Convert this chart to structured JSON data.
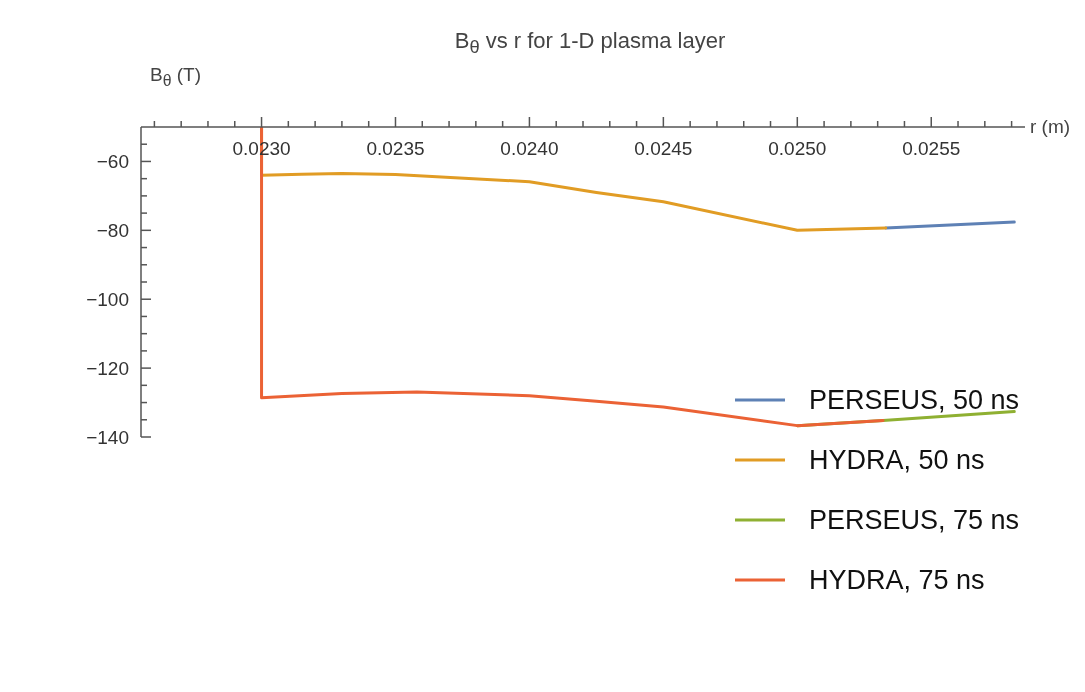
{
  "chart_data": {
    "type": "line",
    "title": "B$_{θ}$ vs r for 1-D plasma layer",
    "xlabel": "r (m)",
    "ylabel": "B$_{θ}$ (T)",
    "xlim": [
      0.02255,
      0.02585
    ],
    "ylim": [
      -140,
      -50
    ],
    "xticks": [
      {
        "value": 0.0226,
        "label": null
      },
      {
        "value": 0.0227,
        "label": null
      },
      {
        "value": 0.0228,
        "label": null
      },
      {
        "value": 0.0229,
        "label": null
      },
      {
        "value": 0.023,
        "label": "0.0230"
      },
      {
        "value": 0.0231,
        "label": null
      },
      {
        "value": 0.0232,
        "label": null
      },
      {
        "value": 0.0233,
        "label": null
      },
      {
        "value": 0.0234,
        "label": null
      },
      {
        "value": 0.0235,
        "label": "0.0235"
      },
      {
        "value": 0.0236,
        "label": null
      },
      {
        "value": 0.0237,
        "label": null
      },
      {
        "value": 0.0238,
        "label": null
      },
      {
        "value": 0.0239,
        "label": null
      },
      {
        "value": 0.024,
        "label": "0.0240"
      },
      {
        "value": 0.0241,
        "label": null
      },
      {
        "value": 0.0242,
        "label": null
      },
      {
        "value": 0.0243,
        "label": null
      },
      {
        "value": 0.0244,
        "label": null
      },
      {
        "value": 0.0245,
        "label": "0.0245"
      },
      {
        "value": 0.0246,
        "label": null
      },
      {
        "value": 0.0247,
        "label": null
      },
      {
        "value": 0.0248,
        "label": null
      },
      {
        "value": 0.0249,
        "label": null
      },
      {
        "value": 0.025,
        "label": "0.0250"
      },
      {
        "value": 0.0251,
        "label": null
      },
      {
        "value": 0.0252,
        "label": null
      },
      {
        "value": 0.0253,
        "label": null
      },
      {
        "value": 0.0254,
        "label": null
      },
      {
        "value": 0.0255,
        "label": "0.0255"
      },
      {
        "value": 0.0256,
        "label": null
      },
      {
        "value": 0.0257,
        "label": null
      },
      {
        "value": 0.0258,
        "label": null
      }
    ],
    "yticks": [
      {
        "value": -140,
        "label": "−140"
      },
      {
        "value": -135,
        "label": null
      },
      {
        "value": -130,
        "label": null
      },
      {
        "value": -125,
        "label": null
      },
      {
        "value": -120,
        "label": "−120"
      },
      {
        "value": -115,
        "label": null
      },
      {
        "value": -110,
        "label": null
      },
      {
        "value": -105,
        "label": null
      },
      {
        "value": -100,
        "label": "−100"
      },
      {
        "value": -95,
        "label": null
      },
      {
        "value": -90,
        "label": null
      },
      {
        "value": -85,
        "label": null
      },
      {
        "value": -80,
        "label": "−80"
      },
      {
        "value": -75,
        "label": null
      },
      {
        "value": -70,
        "label": null
      },
      {
        "value": -65,
        "label": null
      },
      {
        "value": -60,
        "label": "−60"
      },
      {
        "value": -55,
        "label": null
      }
    ],
    "legend": "right",
    "line_style": "solid",
    "series": [
      {
        "name": "PERSEUS, 50 ns",
        "color": "#5e81b5",
        "x": [
          0.02533,
          0.02581
        ],
        "values": [
          -79.3,
          -77.6
        ]
      },
      {
        "name": "HYDRA, 50 ns",
        "color": "#e19c24",
        "x": [
          0.023,
          0.023,
          0.02315,
          0.0233,
          0.0235,
          0.024,
          0.02425,
          0.0245,
          0.025,
          0.02533
        ],
        "values": [
          -50,
          -64,
          -63.7,
          -63.5,
          -63.8,
          -65.9,
          -69,
          -71.7,
          -80,
          -79.3
        ]
      },
      {
        "name": "PERSEUS, 75 ns",
        "color": "#8fb032",
        "x": [
          0.025,
          0.02532,
          0.02581
        ],
        "values": [
          -136.7,
          -135.2,
          -132.6
        ]
      },
      {
        "name": "HYDRA, 75 ns",
        "color": "#eb6235",
        "x": [
          0.023,
          0.023,
          0.0233,
          0.02358,
          0.024,
          0.02425,
          0.0245,
          0.025,
          0.02532
        ],
        "values": [
          -50,
          -128.6,
          -127.4,
          -126.9,
          -128,
          -129.6,
          -131.3,
          -136.7,
          -135.2
        ]
      }
    ]
  }
}
